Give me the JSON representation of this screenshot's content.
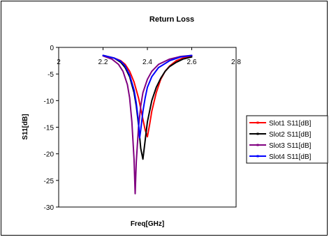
{
  "chart_data": {
    "type": "line",
    "title": "Return Loss",
    "xlabel": "Freq[GHz]",
    "ylabel": "S11[dB]",
    "xlim": [
      2,
      2.8
    ],
    "ylim": [
      -30,
      0
    ],
    "xticks": [
      2,
      2.2,
      2.4,
      2.6,
      2.8
    ],
    "xtick_labels": [
      "2",
      "2.2",
      "2.4",
      "2.6",
      "2.8"
    ],
    "yticks": [
      0,
      -5,
      -10,
      -15,
      -20,
      -25,
      -30
    ],
    "ytick_labels": [
      "0",
      "-5",
      "-10",
      "-15",
      "-20",
      "-25",
      "-30"
    ],
    "grid": false,
    "legend": "right",
    "series": [
      {
        "name": "Slot1 S11[dB]",
        "color": "#ff0000",
        "x": [
          2.2,
          2.25,
          2.28,
          2.3,
          2.32,
          2.34,
          2.36,
          2.37,
          2.38,
          2.39,
          2.4,
          2.41,
          2.42,
          2.44,
          2.46,
          2.48,
          2.5,
          2.53,
          2.56,
          2.6
        ],
        "y": [
          -1.5,
          -2.0,
          -2.5,
          -3.2,
          -4.5,
          -6.5,
          -9.5,
          -11.5,
          -13.5,
          -15.5,
          -16.8,
          -14.5,
          -12.0,
          -8.5,
          -6.0,
          -4.5,
          -3.5,
          -2.5,
          -2.0,
          -1.6
        ]
      },
      {
        "name": "Slot2 S11[dB]",
        "color": "#000000",
        "x": [
          2.2,
          2.25,
          2.28,
          2.3,
          2.32,
          2.34,
          2.35,
          2.36,
          2.37,
          2.38,
          2.39,
          2.4,
          2.42,
          2.44,
          2.46,
          2.48,
          2.5,
          2.53,
          2.56,
          2.6
        ],
        "y": [
          -1.5,
          -2.0,
          -2.8,
          -3.8,
          -5.5,
          -8.5,
          -11.0,
          -14.5,
          -19.0,
          -21.0,
          -17.5,
          -14.0,
          -10.0,
          -7.5,
          -5.8,
          -4.5,
          -3.6,
          -2.8,
          -2.2,
          -1.8
        ]
      },
      {
        "name": "Slot3 S11[dB]",
        "color": "#800080",
        "x": [
          2.2,
          2.24,
          2.27,
          2.29,
          2.31,
          2.32,
          2.33,
          2.34,
          2.345,
          2.35,
          2.36,
          2.37,
          2.38,
          2.4,
          2.42,
          2.45,
          2.5,
          2.55,
          2.6
        ],
        "y": [
          -1.6,
          -2.2,
          -3.2,
          -4.5,
          -7.0,
          -9.5,
          -14.0,
          -21.0,
          -27.5,
          -21.5,
          -15.0,
          -11.0,
          -8.5,
          -6.0,
          -4.5,
          -3.2,
          -2.2,
          -1.7,
          -1.5
        ]
      },
      {
        "name": "Slot4 S11[dB]",
        "color": "#0000ff",
        "x": [
          2.2,
          2.25,
          2.28,
          2.3,
          2.32,
          2.34,
          2.35,
          2.36,
          2.365,
          2.37,
          2.38,
          2.39,
          2.4,
          2.42,
          2.45,
          2.5,
          2.55,
          2.6
        ],
        "y": [
          -1.5,
          -2.0,
          -2.6,
          -3.5,
          -5.2,
          -8.0,
          -10.5,
          -14.0,
          -17.0,
          -15.5,
          -12.0,
          -9.5,
          -7.5,
          -5.5,
          -3.8,
          -2.5,
          -1.8,
          -1.5
        ]
      }
    ]
  }
}
